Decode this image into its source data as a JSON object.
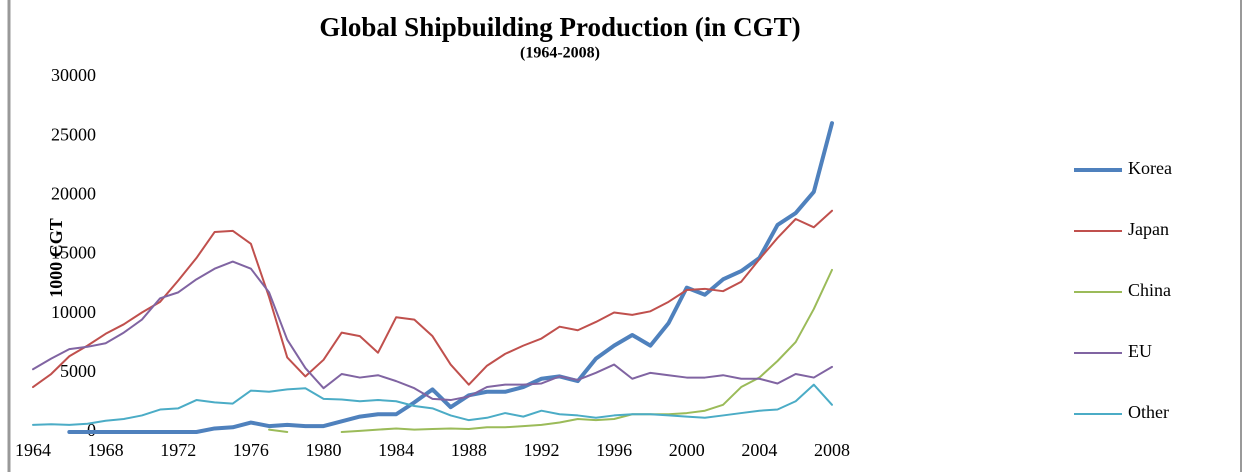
{
  "chart_data": {
    "type": "line",
    "title": "Global Shipbuilding Production (in CGT)",
    "subtitle": "(1964-2008)",
    "y_label": "1000 CGT",
    "x": [
      1964,
      1965,
      1966,
      1967,
      1968,
      1969,
      1970,
      1971,
      1972,
      1973,
      1974,
      1975,
      1976,
      1977,
      1978,
      1979,
      1980,
      1981,
      1982,
      1983,
      1984,
      1985,
      1986,
      1987,
      1988,
      1989,
      1990,
      1991,
      1992,
      1993,
      1994,
      1995,
      1996,
      1997,
      1998,
      1999,
      2000,
      2001,
      2002,
      2003,
      2004,
      2005,
      2006,
      2007,
      2008
    ],
    "xlim": [
      1964,
      2008
    ],
    "xticks": [
      1964,
      1968,
      1972,
      1976,
      1980,
      1984,
      1988,
      1992,
      1996,
      2000,
      2004,
      2008
    ],
    "ylim": [
      0,
      30000
    ],
    "yticks": [
      0,
      5000,
      10000,
      15000,
      20000,
      25000,
      30000
    ],
    "legend": "right",
    "series": [
      {
        "name": "Korea",
        "color": "#4f81bd",
        "line_width": 4,
        "values": [
          null,
          null,
          0,
          0,
          0,
          0,
          0,
          0,
          0,
          0,
          300,
          400,
          800,
          500,
          600,
          500,
          500,
          900,
          1300,
          1500,
          1500,
          2500,
          3600,
          2100,
          3100,
          3400,
          3400,
          3800,
          4500,
          4700,
          4300,
          6200,
          7300,
          8200,
          7300,
          9200,
          12200,
          11600,
          12900,
          13600,
          14700,
          17500,
          18500,
          20300,
          26100
        ]
      },
      {
        "name": "Japan",
        "color": "#c0504d",
        "line_width": 2,
        "values": [
          3800,
          4900,
          6400,
          7300,
          8300,
          9100,
          10100,
          11000,
          12800,
          14700,
          16900,
          17000,
          15900,
          11400,
          6300,
          4700,
          6100,
          8400,
          8100,
          6700,
          9700,
          9500,
          8100,
          5700,
          4000,
          5600,
          6600,
          7300,
          7900,
          8900,
          8600,
          9300,
          10100,
          9900,
          10200,
          11000,
          12000,
          12100,
          11900,
          12700,
          14600,
          16400,
          18000,
          17300,
          18700
        ]
      },
      {
        "name": "China",
        "color": "#9bbb59",
        "line_width": 2,
        "values": [
          null,
          null,
          null,
          null,
          null,
          null,
          null,
          null,
          null,
          null,
          null,
          null,
          null,
          200,
          0,
          null,
          null,
          0,
          100,
          200,
          300,
          200,
          250,
          300,
          250,
          400,
          400,
          500,
          600,
          800,
          1100,
          1000,
          1100,
          1500,
          1500,
          1500,
          1600,
          1800,
          2300,
          3800,
          4600,
          6000,
          7600,
          10400,
          13700
        ]
      },
      {
        "name": "EU",
        "color": "#8064a2",
        "line_width": 2,
        "values": [
          5300,
          6200,
          7000,
          7200,
          7500,
          8400,
          9500,
          11300,
          11800,
          12900,
          13800,
          14400,
          13800,
          11800,
          7800,
          5400,
          3700,
          4900,
          4600,
          4800,
          4300,
          3700,
          2800,
          2700,
          3000,
          3800,
          4000,
          4000,
          4100,
          4700,
          4400,
          5000,
          5700,
          4500,
          5000,
          4800,
          4600,
          4600,
          4800,
          4500,
          4500,
          4100,
          4900,
          4600,
          5500
        ]
      },
      {
        "name": "Other",
        "color": "#4bacc6",
        "line_width": 2,
        "values": [
          600,
          650,
          600,
          700,
          950,
          1100,
          1400,
          1900,
          2000,
          2700,
          2500,
          2400,
          3500,
          3400,
          3600,
          3700,
          2800,
          2750,
          2600,
          2700,
          2600,
          2200,
          2000,
          1400,
          1000,
          1200,
          1600,
          1300,
          1800,
          1500,
          1400,
          1200,
          1400,
          1500,
          1500,
          1400,
          1300,
          1200,
          1400,
          1600,
          1800,
          1900,
          2600,
          4000,
          2300
        ]
      }
    ]
  }
}
